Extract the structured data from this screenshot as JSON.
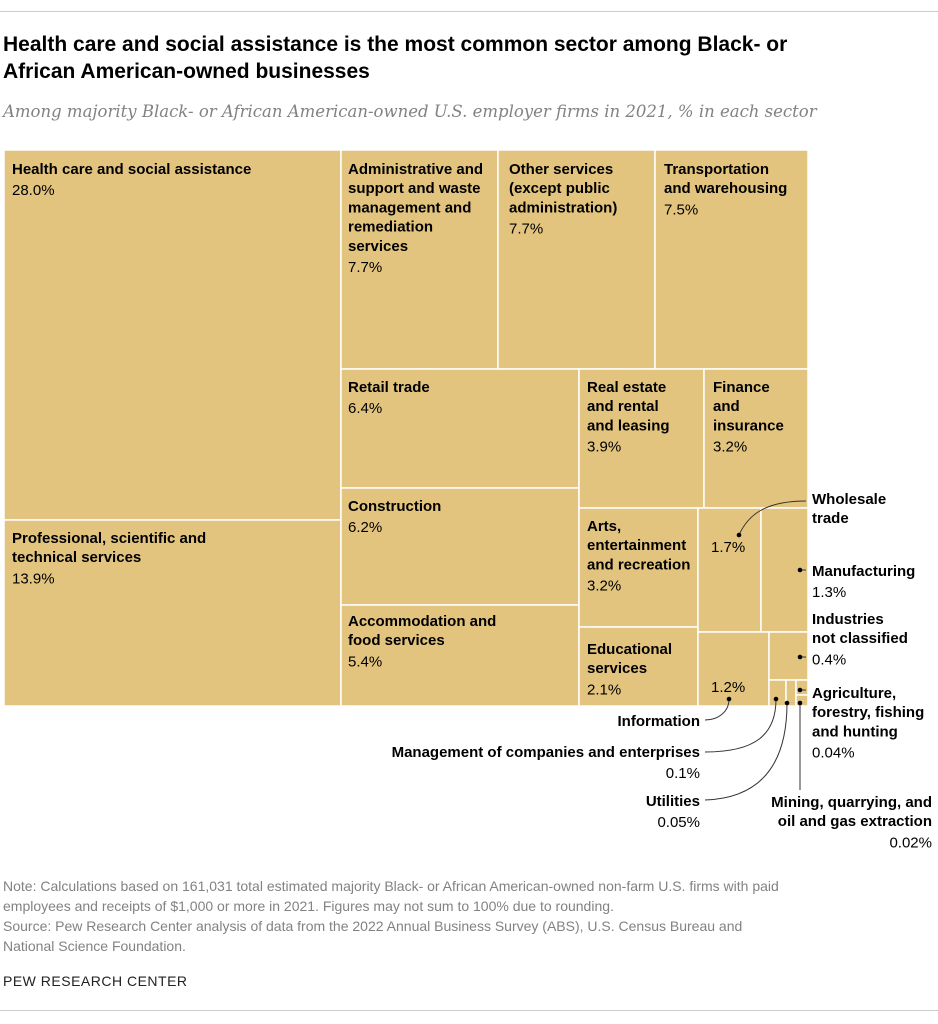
{
  "header": {
    "title_lines": [
      "Health care and social assistance is the most common sector among Black- or",
      "African American-owned businesses"
    ],
    "subtitle": "Among majority Black- or African American-owned U.S. employer firms in 2021, % in each sector"
  },
  "footer": {
    "note_lines": [
      "Note: Calculations based on 161,031 total estimated majority Black- or African American-owned non-farm U.S. firms with paid",
      "employees and receipts of $1,000 or more in 2021. Figures may not sum to 100% due to rounding.",
      "Source: Pew Research Center analysis of data from the 2022 Annual Business Survey (ABS), U.S. Census Bureau and",
      "National Science Foundation."
    ],
    "brand": "PEW RESEARCH CENTER"
  },
  "chart_data": {
    "type": "treemap",
    "unit": "%",
    "fill_color": "#e2c47e",
    "border_color": "#ffffff",
    "label_color": "#000000",
    "leader_color": "#333333",
    "items": [
      {
        "name": "Health care and social assistance",
        "value": 28.0,
        "label": "28.0%",
        "lines": [
          "Health care and social assistance"
        ]
      },
      {
        "name": "Professional, scientific and technical services",
        "value": 13.9,
        "label": "13.9%",
        "lines": [
          "Professional, scientific and",
          "technical services"
        ]
      },
      {
        "name": "Administrative and support and waste management and remediation services",
        "value": 7.7,
        "label": "7.7%",
        "lines": [
          "Administrative and",
          "support and waste",
          "management and",
          "remediation",
          "services"
        ]
      },
      {
        "name": "Other services (except public administration)",
        "value": 7.7,
        "label": "7.7%",
        "lines": [
          "Other services",
          "(except public",
          "administration)"
        ]
      },
      {
        "name": "Transportation and warehousing",
        "value": 7.5,
        "label": "7.5%",
        "lines": [
          "Transportation",
          "and warehousing"
        ]
      },
      {
        "name": "Retail trade",
        "value": 6.4,
        "label": "6.4%",
        "lines": [
          "Retail trade"
        ]
      },
      {
        "name": "Construction",
        "value": 6.2,
        "label": "6.2%",
        "lines": [
          "Construction"
        ]
      },
      {
        "name": "Accommodation and food services",
        "value": 5.4,
        "label": "5.4%",
        "lines": [
          "Accommodation and",
          "food services"
        ]
      },
      {
        "name": "Real estate and rental and leasing",
        "value": 3.9,
        "label": "3.9%",
        "lines": [
          "Real estate",
          "and rental",
          "and leasing"
        ]
      },
      {
        "name": "Finance and insurance",
        "value": 3.2,
        "label": "3.2%",
        "lines": [
          "Finance",
          "and",
          "insurance"
        ]
      },
      {
        "name": "Arts, entertainment and recreation",
        "value": 3.2,
        "label": "3.2%",
        "lines": [
          "Arts,",
          "entertainment",
          "and recreation"
        ]
      },
      {
        "name": "Educational services",
        "value": 2.1,
        "label": "2.1%",
        "lines": [
          "Educational",
          "services"
        ]
      },
      {
        "name": "Wholesale trade",
        "value": 1.7,
        "label": "1.7%",
        "lines": [
          "Wholesale",
          "trade"
        ]
      },
      {
        "name": "Manufacturing",
        "value": 1.3,
        "label": "1.3%",
        "lines": [
          "Manufacturing"
        ]
      },
      {
        "name": "Information",
        "value": 1.2,
        "label": "1.2%",
        "lines": [
          "Information"
        ]
      },
      {
        "name": "Industries not classified",
        "value": 0.4,
        "label": "0.4%",
        "lines": [
          "Industries",
          "not classified"
        ]
      },
      {
        "name": "Management of companies and enterprises",
        "value": 0.1,
        "label": "0.1%",
        "lines": [
          "Management of companies and enterprises"
        ]
      },
      {
        "name": "Utilities",
        "value": 0.05,
        "label": "0.05%",
        "lines": [
          "Utilities"
        ]
      },
      {
        "name": "Agriculture, forestry, fishing and hunting",
        "value": 0.04,
        "label": "0.04%",
        "lines": [
          "Agriculture,",
          "forestry, fishing",
          "and hunting"
        ]
      },
      {
        "name": "Mining, quarrying, and oil and gas extraction",
        "value": 0.02,
        "label": "0.02%",
        "lines": [
          "Mining, quarrying, and",
          "oil and gas extraction"
        ]
      }
    ]
  }
}
